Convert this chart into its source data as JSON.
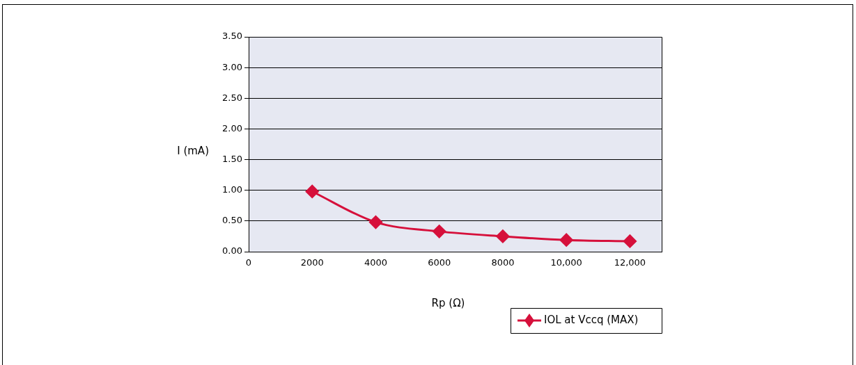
{
  "chart_data": {
    "type": "line",
    "xlabel": "Rp (Ω)",
    "ylabel": "I (mA)",
    "x": [
      2000,
      4000,
      6000,
      8000,
      10000,
      12000
    ],
    "series": [
      {
        "name": "IOL at Vccq (MAX)",
        "color": "#d6103b",
        "values": [
          0.98,
          0.48,
          0.33,
          0.25,
          0.19,
          0.17
        ]
      }
    ],
    "xlim": [
      0,
      13000
    ],
    "xticks": [
      0,
      2000,
      4000,
      6000,
      8000,
      {
        "value": 10000,
        "label": "10,000"
      },
      {
        "value": 12000,
        "label": "12,000"
      }
    ],
    "ylim": [
      0,
      3.5
    ],
    "yticks": [
      {
        "value": 0,
        "label": "0.00"
      },
      {
        "value": 0.5,
        "label": "0.50"
      },
      {
        "value": 1,
        "label": "1.00"
      },
      {
        "value": 1.5,
        "label": "1.50"
      },
      {
        "value": 2,
        "label": "2.00"
      },
      {
        "value": 2.5,
        "label": "2.50"
      },
      {
        "value": 3,
        "label": "3.00"
      },
      {
        "value": 3.5,
        "label": "3.50"
      }
    ],
    "grid": "y",
    "legend": "bottom right",
    "marker": "diamond",
    "line_style": "solid"
  }
}
